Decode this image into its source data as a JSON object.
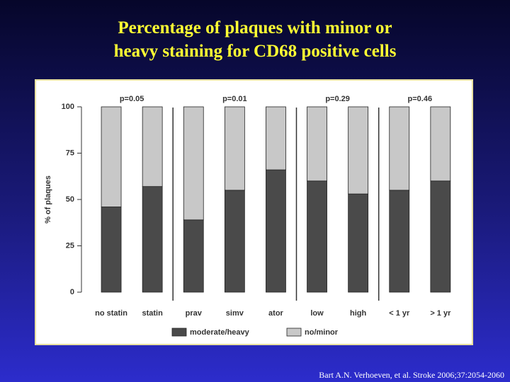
{
  "chart_data": {
    "type": "stacked-bar",
    "title_lines": [
      "Percentage of plaques with minor or",
      "heavy staining for CD68 positive cells"
    ],
    "y_label": "% of plaques",
    "categories": [
      "no statin",
      "statin",
      "prav",
      "simv",
      "ator",
      "low",
      "high",
      "< 1 yr",
      "> 1 yr"
    ],
    "series": [
      {
        "name": "moderate/heavy",
        "color": "#4a4a4a",
        "values": [
          46,
          57,
          39,
          55,
          66,
          60,
          53,
          55,
          60
        ]
      },
      {
        "name": "no/minor",
        "color": "#c8c8c8",
        "values": [
          54,
          43,
          61,
          45,
          34,
          40,
          47,
          45,
          40
        ]
      }
    ],
    "annotations": [
      "p=0.05",
      "p=0.01",
      "p=0.29",
      "p=0.46"
    ],
    "ylim": [
      0,
      100
    ],
    "yticks": [
      0,
      25,
      50,
      75,
      100
    ],
    "grid": false,
    "source": "Bart A.N. Verhoeven, et al. Stroke 2006;37:2054-2060"
  }
}
